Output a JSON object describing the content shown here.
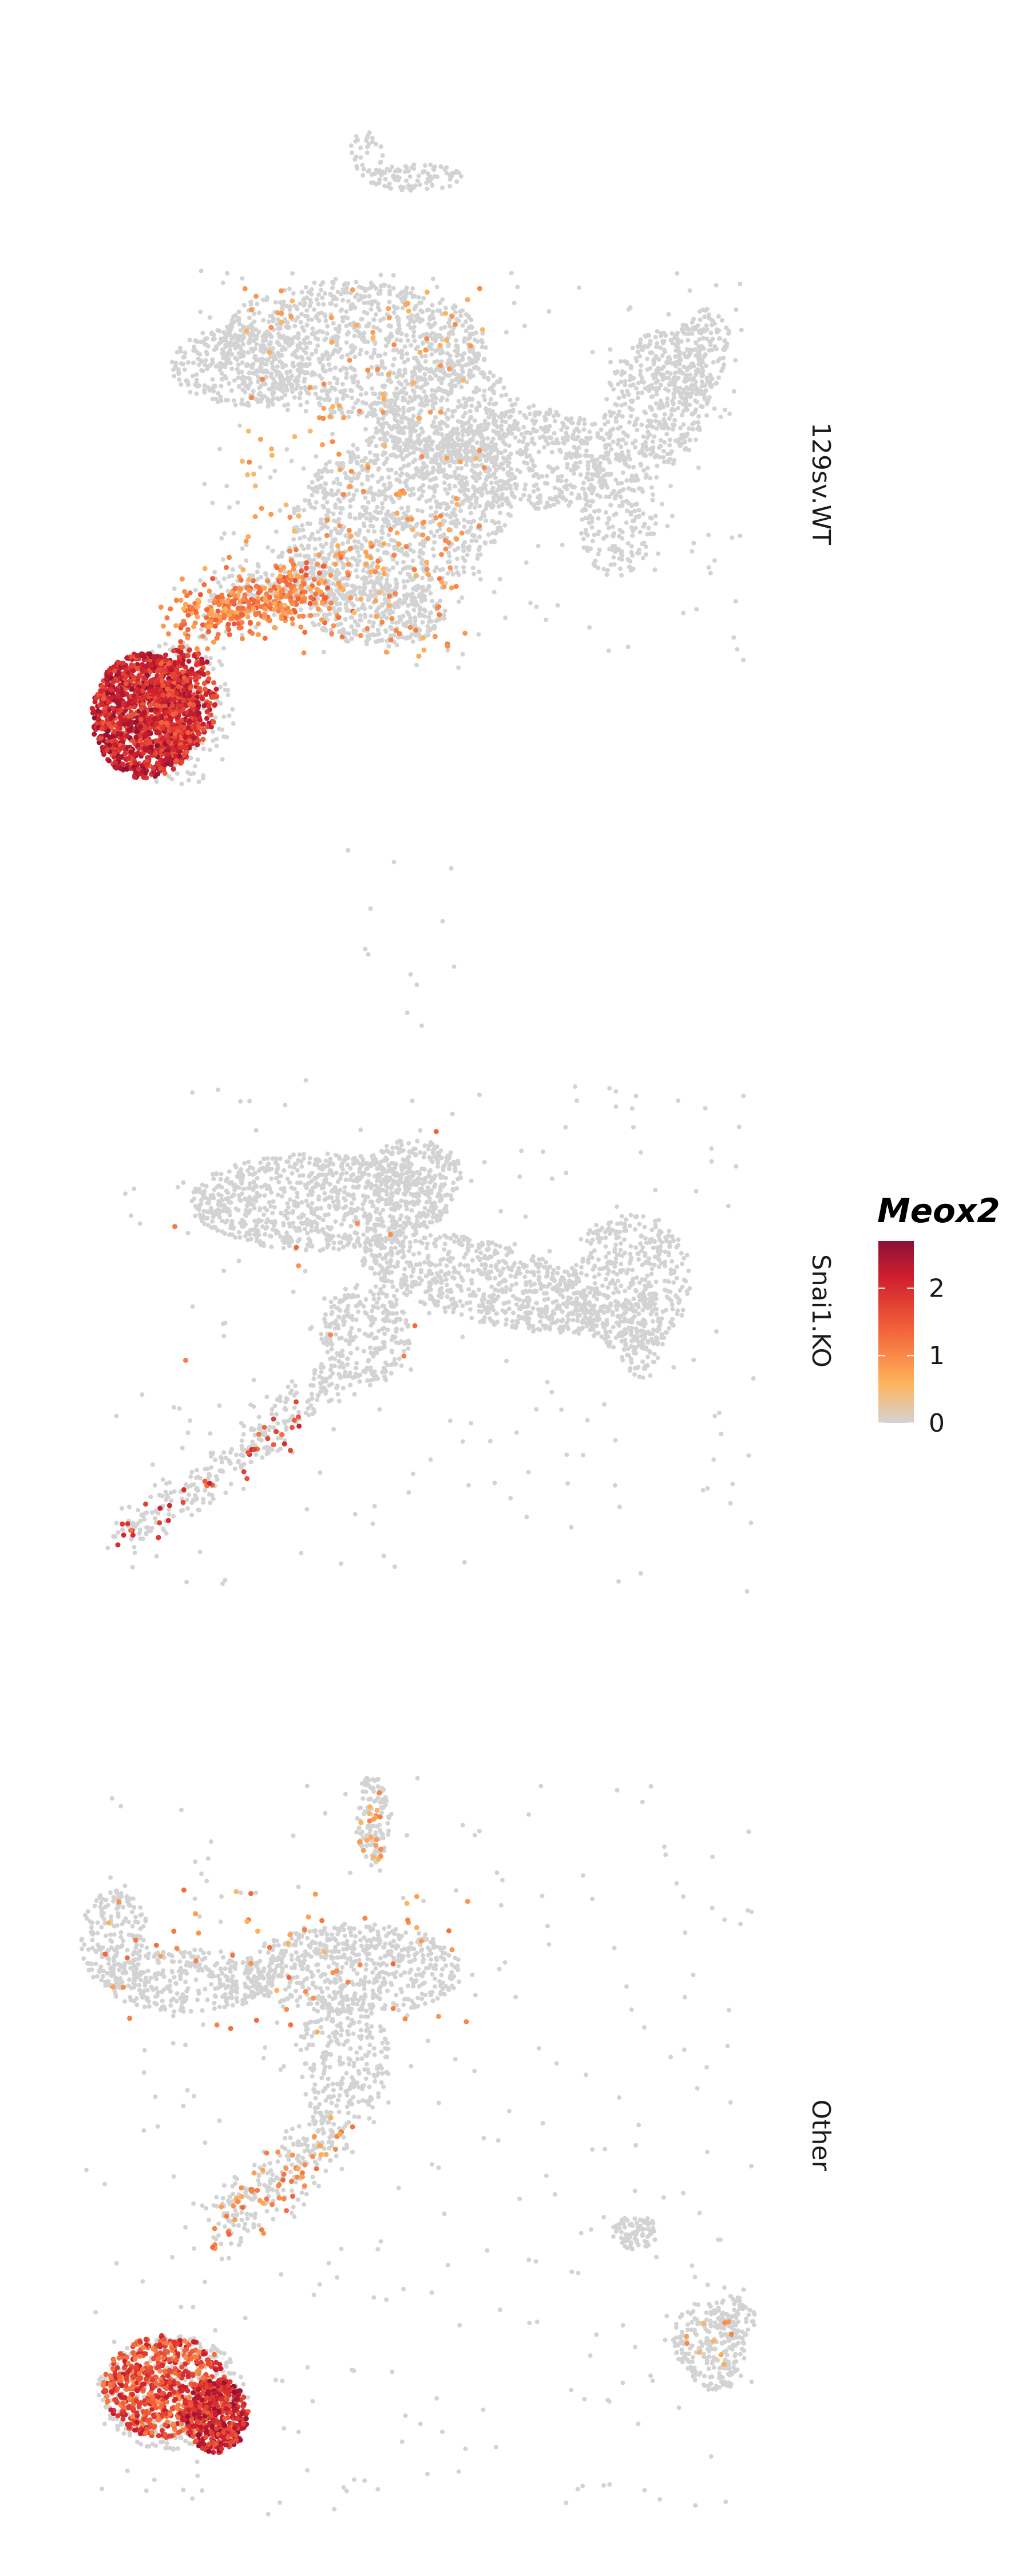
{
  "chart_data": {
    "type": "scatter",
    "title": "",
    "xlabel": "",
    "ylabel": "",
    "grid": false,
    "facet_direction": "vertical",
    "facets": [
      {
        "label": "129sv.WT"
      },
      {
        "label": "Snai1.KO"
      },
      {
        "label": "Other"
      }
    ],
    "legend": {
      "title": "Meox2",
      "placement": "right",
      "ticks": [
        2,
        1,
        0
      ],
      "range": [
        0,
        2.7
      ]
    },
    "colors": {
      "zero": "#d3d3d3",
      "low": "#feb35b",
      "mid": "#f3603a",
      "high": "#cf1f2e",
      "max": "#8c1036"
    }
  }
}
